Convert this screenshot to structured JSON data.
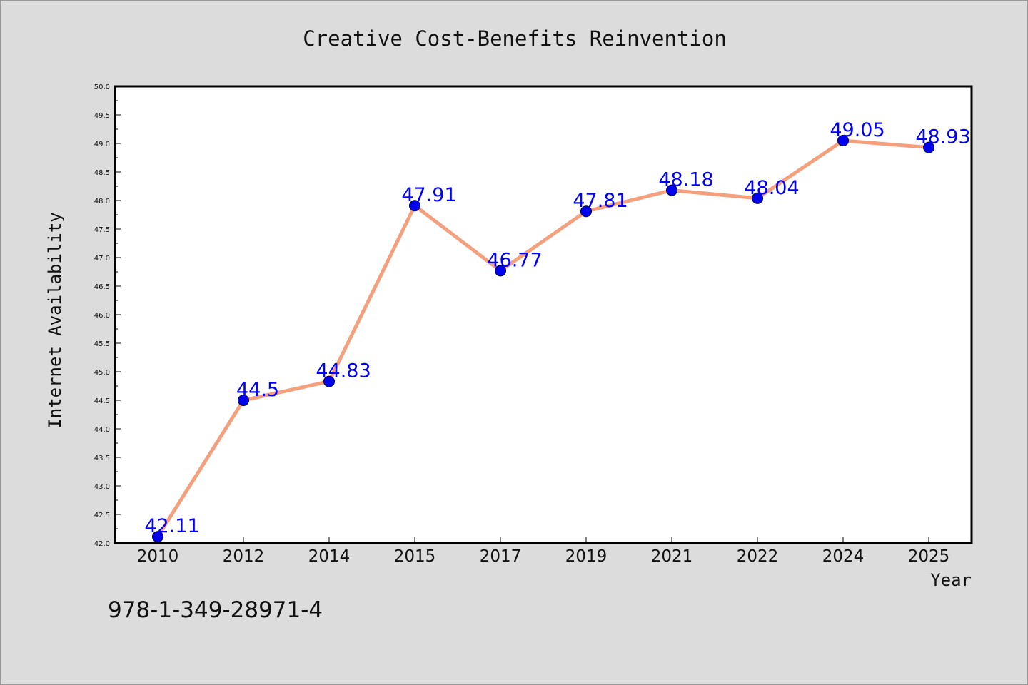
{
  "footer_code": "978-1-349-28971-4",
  "colors": {
    "background": "#dcdcdc",
    "plot_background": "#ffffff",
    "line": "#f5a07d",
    "marker": "#0000ee",
    "data_label": "#0000ff"
  },
  "chart_data": {
    "type": "line",
    "title": "Creative Cost-Benefits Reinvention",
    "xlabel": "Year",
    "ylabel": "Internet Availability",
    "categories": [
      "2010",
      "2012",
      "2014",
      "2015",
      "2017",
      "2019",
      "2021",
      "2022",
      "2024",
      "2025"
    ],
    "series": [
      {
        "values": [
          42.11,
          44.5,
          44.83,
          47.91,
          46.77,
          47.81,
          48.18,
          48.04,
          49.05,
          48.93
        ],
        "labels": [
          "42.11",
          "44.5",
          "44.83",
          "47.91",
          "46.77",
          "47.81",
          "48.18",
          "48.04",
          "49.05",
          "48.93"
        ]
      }
    ],
    "ylim": [
      42.0,
      50.0
    ],
    "yticks": [
      "42.0",
      "42.5",
      "43.0",
      "43.5",
      "44.0",
      "44.5",
      "45.0",
      "45.5",
      "46.0",
      "46.5",
      "47.0",
      "47.5",
      "48.0",
      "48.5",
      "49.0",
      "49.5",
      "50.0"
    ],
    "grid": false,
    "legend": "none"
  }
}
